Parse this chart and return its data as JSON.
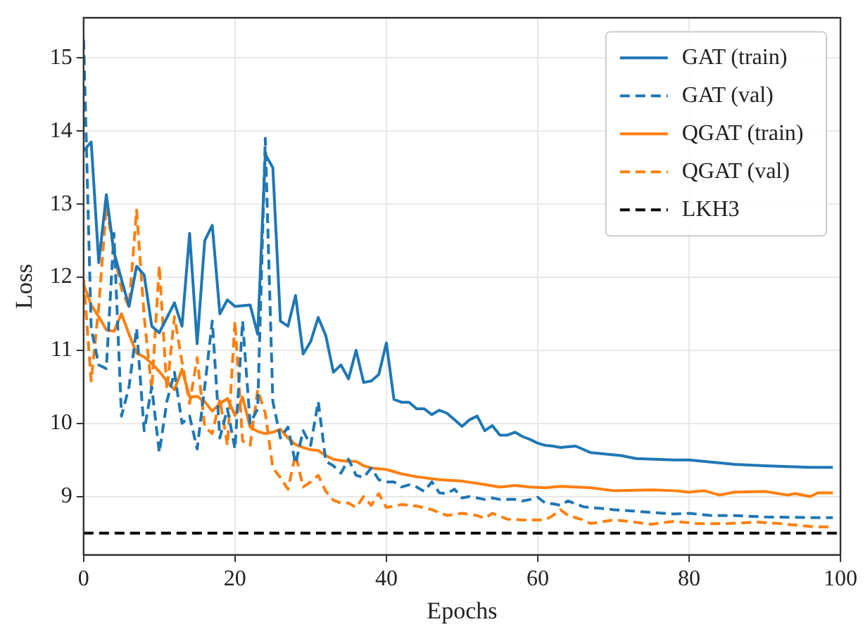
{
  "chart_data": {
    "type": "line",
    "xlabel": "Epochs",
    "ylabel": "Loss",
    "xlim": [
      0,
      100
    ],
    "xticks": [
      0,
      20,
      40,
      60,
      80,
      100
    ],
    "ylim": [
      8.2,
      15.55
    ],
    "yticks": [
      9,
      10,
      11,
      12,
      13,
      14,
      15
    ],
    "grid": true,
    "legend": "top right",
    "marker": "none",
    "series": [
      {
        "name": "GAT (train)",
        "color": "#1f77b4",
        "line_style": "solid",
        "x": [
          0,
          1,
          2,
          3,
          4,
          5,
          6,
          7,
          8,
          9,
          10,
          12,
          13,
          14,
          15,
          16,
          17,
          18,
          19,
          20,
          22,
          23,
          24,
          25,
          26,
          27,
          28,
          29,
          30,
          31,
          32,
          33,
          34,
          35,
          36,
          37,
          38,
          39,
          40,
          41,
          42,
          43,
          44,
          45,
          46,
          47,
          48,
          49,
          50,
          51,
          52,
          53,
          54,
          55,
          56,
          57,
          58,
          59,
          60,
          61,
          62,
          63,
          65,
          67,
          71,
          73,
          78,
          80,
          86,
          90,
          96,
          99
        ],
        "values": [
          13.73,
          13.85,
          12.2,
          13.13,
          12.35,
          11.97,
          11.6,
          12.15,
          12.03,
          11.33,
          11.24,
          11.65,
          11.33,
          12.6,
          11.09,
          12.5,
          12.71,
          11.5,
          11.69,
          11.6,
          11.62,
          11.22,
          13.68,
          13.5,
          11.4,
          11.33,
          11.75,
          10.95,
          11.12,
          11.45,
          11.2,
          10.7,
          10.8,
          10.61,
          11.0,
          10.56,
          10.58,
          10.67,
          11.1,
          10.33,
          10.29,
          10.29,
          10.2,
          10.2,
          10.12,
          10.18,
          10.14,
          10.05,
          9.96,
          10.05,
          10.1,
          9.9,
          9.97,
          9.84,
          9.84,
          9.88,
          9.82,
          9.78,
          9.73,
          9.7,
          9.69,
          9.67,
          9.69,
          9.6,
          9.56,
          9.52,
          9.5,
          9.5,
          9.44,
          9.42,
          9.4,
          9.4
        ]
      },
      {
        "name": "GAT (val)",
        "color": "#1f77b4",
        "line_style": "dashed",
        "x": [
          0,
          1,
          2,
          3,
          4,
          5,
          6,
          7,
          8,
          9,
          10,
          11,
          12,
          13,
          14,
          15,
          16,
          17,
          18,
          19,
          20,
          21,
          22,
          23,
          24,
          25,
          26,
          27,
          28,
          29,
          30,
          31,
          32,
          33,
          34,
          35,
          36,
          37,
          38,
          39,
          40,
          41,
          42,
          43,
          44,
          45,
          46,
          47,
          48,
          49,
          50,
          51,
          52,
          53,
          54,
          55,
          56,
          57,
          58,
          59,
          60,
          61,
          62,
          63,
          64,
          66,
          70,
          74,
          78,
          80,
          83,
          86,
          90,
          97,
          99
        ],
        "values": [
          15.25,
          11.3,
          10.8,
          10.75,
          12.6,
          10.1,
          10.5,
          11.3,
          9.9,
          10.5,
          9.6,
          10.3,
          10.7,
          10.0,
          10.1,
          9.65,
          10.5,
          11.4,
          9.8,
          10.2,
          9.65,
          11.4,
          10.0,
          10.2,
          13.9,
          10.3,
          9.8,
          9.95,
          9.45,
          9.9,
          9.7,
          10.3,
          9.48,
          9.42,
          9.32,
          9.51,
          9.29,
          9.26,
          9.39,
          9.23,
          9.2,
          9.2,
          9.13,
          9.16,
          9.13,
          9.07,
          9.2,
          9.05,
          9.04,
          9.1,
          8.98,
          9.0,
          8.98,
          8.96,
          8.98,
          8.96,
          8.96,
          8.96,
          8.94,
          8.96,
          8.99,
          8.91,
          8.9,
          8.88,
          8.94,
          8.86,
          8.82,
          8.79,
          8.76,
          8.77,
          8.74,
          8.74,
          8.72,
          8.71,
          8.71
        ]
      },
      {
        "name": "QGAT (train)",
        "color": "#ff7f0e",
        "line_style": "solid",
        "x": [
          0,
          1,
          2,
          3,
          4,
          5,
          6,
          7,
          8,
          9,
          10,
          11,
          12,
          13,
          14,
          15,
          16,
          17,
          18,
          19,
          20,
          21,
          22,
          23,
          24,
          25,
          26,
          27,
          28,
          29,
          30,
          31,
          32,
          33,
          34,
          35,
          36,
          37,
          38,
          40,
          42,
          44,
          47,
          50,
          52,
          55,
          57,
          59,
          61,
          63,
          67,
          70,
          75,
          78,
          80,
          82,
          84,
          86,
          90,
          93,
          94,
          96,
          97,
          99
        ],
        "values": [
          11.9,
          11.62,
          11.46,
          11.28,
          11.26,
          11.5,
          11.22,
          10.96,
          10.91,
          10.82,
          10.71,
          10.58,
          10.46,
          10.74,
          10.36,
          10.37,
          10.3,
          10.17,
          10.27,
          10.34,
          10.11,
          10.36,
          9.95,
          9.89,
          9.86,
          9.88,
          9.92,
          9.8,
          9.71,
          9.67,
          9.64,
          9.63,
          9.56,
          9.51,
          9.49,
          9.48,
          9.48,
          9.42,
          9.39,
          9.37,
          9.31,
          9.27,
          9.23,
          9.21,
          9.18,
          9.13,
          9.15,
          9.13,
          9.12,
          9.14,
          9.12,
          9.08,
          9.09,
          9.08,
          9.06,
          9.08,
          9.02,
          9.06,
          9.07,
          9.02,
          9.04,
          9.0,
          9.05,
          9.05
        ]
      },
      {
        "name": "QGAT (val)",
        "color": "#ff7f0e",
        "line_style": "dashed",
        "x": [
          0,
          1,
          2,
          3,
          4,
          5,
          6,
          7,
          8,
          9,
          10,
          11,
          12,
          13,
          14,
          15,
          16,
          17,
          18,
          19,
          20,
          21,
          22,
          23,
          24,
          25,
          26,
          27,
          28,
          29,
          30,
          31,
          32,
          33,
          34,
          35,
          36,
          37,
          38,
          39,
          40,
          42,
          44,
          46,
          48,
          50,
          52,
          53,
          54,
          56,
          58,
          61,
          62,
          63,
          64,
          66,
          67,
          70,
          72,
          75,
          78,
          81,
          85,
          89,
          92,
          96,
          99
        ],
        "values": [
          11.97,
          10.58,
          11.6,
          12.98,
          12.35,
          11.84,
          11.59,
          12.92,
          11.46,
          10.46,
          12.16,
          10.46,
          11.46,
          10.84,
          10.27,
          10.9,
          9.95,
          9.86,
          10.33,
          9.7,
          11.4,
          9.76,
          9.7,
          10.46,
          10.14,
          9.39,
          9.26,
          9.1,
          9.58,
          9.13,
          9.2,
          9.29,
          9.07,
          8.95,
          8.91,
          8.91,
          8.85,
          9.0,
          8.88,
          9.04,
          8.85,
          8.89,
          8.87,
          8.82,
          8.74,
          8.77,
          8.74,
          8.7,
          8.77,
          8.69,
          8.68,
          8.68,
          8.74,
          8.82,
          8.74,
          8.68,
          8.63,
          8.68,
          8.66,
          8.62,
          8.66,
          8.63,
          8.63,
          8.65,
          8.63,
          8.59,
          8.58
        ]
      },
      {
        "name": "LKH3",
        "color": "#000000",
        "line_style": "dashed",
        "x": [
          0,
          100
        ],
        "values": [
          8.5,
          8.5
        ]
      }
    ]
  }
}
